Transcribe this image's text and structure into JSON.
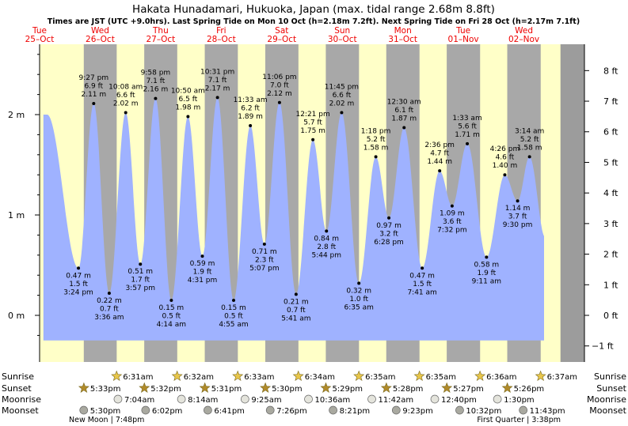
{
  "title": "Hakata Hunadamari, Hukuoka, Japan (max. tidal range 2.68m 8.8ft)",
  "subtitle": "Times are JST (UTC +9.0hrs). Last Spring Tide on Mon 10 Oct (h=2.18m 7.2ft). Next Spring Tide on Fri 28 Oct (h=2.17m 7.1ft)",
  "colors": {
    "day_band": "#ffffc8",
    "night_band": "#a8a8a8",
    "tide_fill": "#9fb2ff",
    "day_label": "#ee0000",
    "outer_bg": "#9c9c9c",
    "marker": "#000000"
  },
  "days": [
    {
      "dow": "Tue",
      "date": "25–Oct"
    },
    {
      "dow": "Wed",
      "date": "26–Oct"
    },
    {
      "dow": "Thu",
      "date": "27–Oct"
    },
    {
      "dow": "Fri",
      "date": "28–Oct"
    },
    {
      "dow": "Sat",
      "date": "29–Oct"
    },
    {
      "dow": "Sun",
      "date": "30–Oct"
    },
    {
      "dow": "Mon",
      "date": "31–Oct"
    },
    {
      "dow": "Tue",
      "date": "01–Nov"
    },
    {
      "dow": "Wed",
      "date": "02–Nov"
    }
  ],
  "chart_data": {
    "type": "area",
    "x_unit": "hours after 00:00 Tue 25-Oct (JST)",
    "y_unit": "m",
    "ylim": [
      -0.25,
      2.65
    ],
    "yticks_m": [
      {
        "value": 0,
        "label": "0 m"
      },
      {
        "value": 1,
        "label": "1 m"
      },
      {
        "value": 2,
        "label": "2 m"
      }
    ],
    "yticks_ft": [
      {
        "value": -1,
        "label": "−1 ft"
      },
      {
        "value": 0,
        "label": "0 ft"
      },
      {
        "value": 1,
        "label": "1 ft"
      },
      {
        "value": 2,
        "label": "2 ft"
      },
      {
        "value": 3,
        "label": "3 ft"
      },
      {
        "value": 4,
        "label": "4 ft"
      },
      {
        "value": 5,
        "label": "5 ft"
      },
      {
        "value": 6,
        "label": "6 ft"
      },
      {
        "value": 7,
        "label": "7 ft"
      },
      {
        "value": 8,
        "label": "8 ft"
      }
    ],
    "start_level": 2.0,
    "end_level": 0.78,
    "extremes": [
      {
        "t": 15.4,
        "h": 0.47,
        "time": "3:24 pm",
        "m": "0.47 m",
        "ft": "1.5 ft",
        "type": "low"
      },
      {
        "t": 21.45,
        "h": 2.11,
        "time": "9:27 pm",
        "m": "2.11 m",
        "ft": "6.9 ft",
        "type": "high"
      },
      {
        "t": 27.6,
        "h": 0.22,
        "time": "3:36 am",
        "m": "0.22 m",
        "ft": "0.7 ft",
        "type": "low"
      },
      {
        "t": 34.13,
        "h": 2.02,
        "time": "10:08 am",
        "m": "2.02 m",
        "ft": "6.6 ft",
        "type": "high"
      },
      {
        "t": 39.95,
        "h": 0.51,
        "time": "3:57 pm",
        "m": "0.51 m",
        "ft": "1.7 ft",
        "type": "low"
      },
      {
        "t": 45.97,
        "h": 2.16,
        "time": "9:58 pm",
        "m": "2.16 m",
        "ft": "7.1 ft",
        "type": "high"
      },
      {
        "t": 52.23,
        "h": 0.15,
        "time": "4:14 am",
        "m": "0.15 m",
        "ft": "0.5 ft",
        "type": "low"
      },
      {
        "t": 58.83,
        "h": 1.98,
        "time": "10:50 am",
        "m": "1.98 m",
        "ft": "6.5 ft",
        "type": "high"
      },
      {
        "t": 64.52,
        "h": 0.59,
        "time": "4:31 pm",
        "m": "0.59 m",
        "ft": "1.9 ft",
        "type": "low"
      },
      {
        "t": 70.52,
        "h": 2.17,
        "time": "10:31 pm",
        "m": "2.17 m",
        "ft": "7.1 ft",
        "type": "high"
      },
      {
        "t": 76.92,
        "h": 0.15,
        "time": "4:55 am",
        "m": "0.15 m",
        "ft": "0.5 ft",
        "type": "low"
      },
      {
        "t": 83.55,
        "h": 1.89,
        "time": "11:33 am",
        "m": "1.89 m",
        "ft": "6.2 ft",
        "type": "high"
      },
      {
        "t": 89.12,
        "h": 0.71,
        "time": "5:07 pm",
        "m": "0.71 m",
        "ft": "2.3 ft",
        "type": "low"
      },
      {
        "t": 95.1,
        "h": 2.12,
        "time": "11:06 pm",
        "m": "2.12 m",
        "ft": "7.0 ft",
        "type": "high"
      },
      {
        "t": 101.68,
        "h": 0.21,
        "time": "5:41 am",
        "m": "0.21 m",
        "ft": "0.7 ft",
        "type": "low"
      },
      {
        "t": 108.35,
        "h": 1.75,
        "time": "12:21 pm",
        "m": "1.75 m",
        "ft": "5.7 ft",
        "type": "high"
      },
      {
        "t": 113.73,
        "h": 0.84,
        "time": "5:44 pm",
        "m": "0.84 m",
        "ft": "2.8 ft",
        "type": "low"
      },
      {
        "t": 119.75,
        "h": 2.02,
        "time": "11:45 pm",
        "m": "2.02 m",
        "ft": "6.6 ft",
        "type": "high"
      },
      {
        "t": 126.58,
        "h": 0.32,
        "time": "6:35 am",
        "m": "0.32 m",
        "ft": "1.0 ft",
        "type": "low"
      },
      {
        "t": 133.3,
        "h": 1.58,
        "time": "1:18 pm",
        "m": "1.58 m",
        "ft": "5.2 ft",
        "type": "high"
      },
      {
        "t": 138.47,
        "h": 0.97,
        "time": "6:28 pm",
        "m": "0.97 m",
        "ft": "3.2 ft",
        "type": "low"
      },
      {
        "t": 144.5,
        "h": 1.87,
        "time": "12:30 am",
        "m": "1.87 m",
        "ft": "6.1 ft",
        "type": "high"
      },
      {
        "t": 151.68,
        "h": 0.47,
        "time": "7:41 am",
        "m": "0.47 m",
        "ft": "1.5 ft",
        "type": "low"
      },
      {
        "t": 158.6,
        "h": 1.44,
        "time": "2:36 pm",
        "m": "1.44 m",
        "ft": "4.7 ft",
        "type": "high"
      },
      {
        "t": 163.53,
        "h": 1.09,
        "time": "7:32 pm",
        "m": "1.09 m",
        "ft": "3.6 ft",
        "type": "low"
      },
      {
        "t": 169.55,
        "h": 1.71,
        "time": "1:33 am",
        "m": "1.71 m",
        "ft": "5.6 ft",
        "type": "high"
      },
      {
        "t": 177.18,
        "h": 0.58,
        "time": "9:11 am",
        "m": "0.58 m",
        "ft": "1.9 ft",
        "type": "low"
      },
      {
        "t": 184.43,
        "h": 1.4,
        "time": "4:26 pm",
        "m": "1.40 m",
        "ft": "4.6 ft",
        "type": "high"
      },
      {
        "t": 189.5,
        "h": 1.14,
        "time": "9:30 pm",
        "m": "1.14 m",
        "ft": "3.7 ft",
        "type": "low"
      },
      {
        "t": 194.23,
        "h": 1.58,
        "time": "3:14 am",
        "m": "1.58 m",
        "ft": "5.2 ft",
        "type": "high"
      }
    ],
    "sunrise": [
      {
        "t": 30.52,
        "label": "6:31am"
      },
      {
        "t": 54.53,
        "label": "6:32am"
      },
      {
        "t": 78.55,
        "label": "6:33am"
      },
      {
        "t": 102.57,
        "label": "6:34am"
      },
      {
        "t": 126.58,
        "label": "6:35am"
      },
      {
        "t": 150.58,
        "label": "6:35am"
      },
      {
        "t": 174.6,
        "label": "6:36am"
      },
      {
        "t": 198.62,
        "label": "6:37am"
      }
    ],
    "sunset": [
      {
        "t": 17.55,
        "label": "5:33pm"
      },
      {
        "t": 41.53,
        "label": "5:32pm"
      },
      {
        "t": 65.52,
        "label": "5:31pm"
      },
      {
        "t": 89.5,
        "label": "5:30pm"
      },
      {
        "t": 113.48,
        "label": "5:29pm"
      },
      {
        "t": 137.47,
        "label": "5:28pm"
      },
      {
        "t": 161.45,
        "label": "5:27pm"
      },
      {
        "t": 185.43,
        "label": "5:26pm"
      }
    ],
    "moonrise": [
      {
        "t": 31.07,
        "label": "7:04am"
      },
      {
        "t": 56.23,
        "label": "8:14am"
      },
      {
        "t": 81.42,
        "label": "9:25am"
      },
      {
        "t": 106.6,
        "label": "10:36am"
      },
      {
        "t": 131.7,
        "label": "11:42am"
      },
      {
        "t": 156.67,
        "label": "12:40pm"
      },
      {
        "t": 181.5,
        "label": "1:30pm"
      }
    ],
    "moonset": [
      {
        "t": 17.5,
        "label": "5:30pm"
      },
      {
        "t": 42.03,
        "label": "6:02pm"
      },
      {
        "t": 66.68,
        "label": "6:41pm"
      },
      {
        "t": 91.43,
        "label": "7:26pm"
      },
      {
        "t": 116.35,
        "label": "8:21pm"
      },
      {
        "t": 141.38,
        "label": "9:23pm"
      },
      {
        "t": 166.53,
        "label": "10:32pm"
      },
      {
        "t": 191.72,
        "label": "11:43pm"
      }
    ],
    "moon_phases": [
      {
        "label": "New Moon | 7:48pm",
        "align": "left"
      },
      {
        "label": "First Quarter | 3:38pm",
        "align": "right"
      }
    ],
    "rows": [
      {
        "key": "sunrise",
        "label": "Sunrise"
      },
      {
        "key": "sunset",
        "label": "Sunset"
      },
      {
        "key": "moonrise",
        "label": "Moonrise"
      },
      {
        "key": "moonset",
        "label": "Moonset"
      }
    ]
  }
}
